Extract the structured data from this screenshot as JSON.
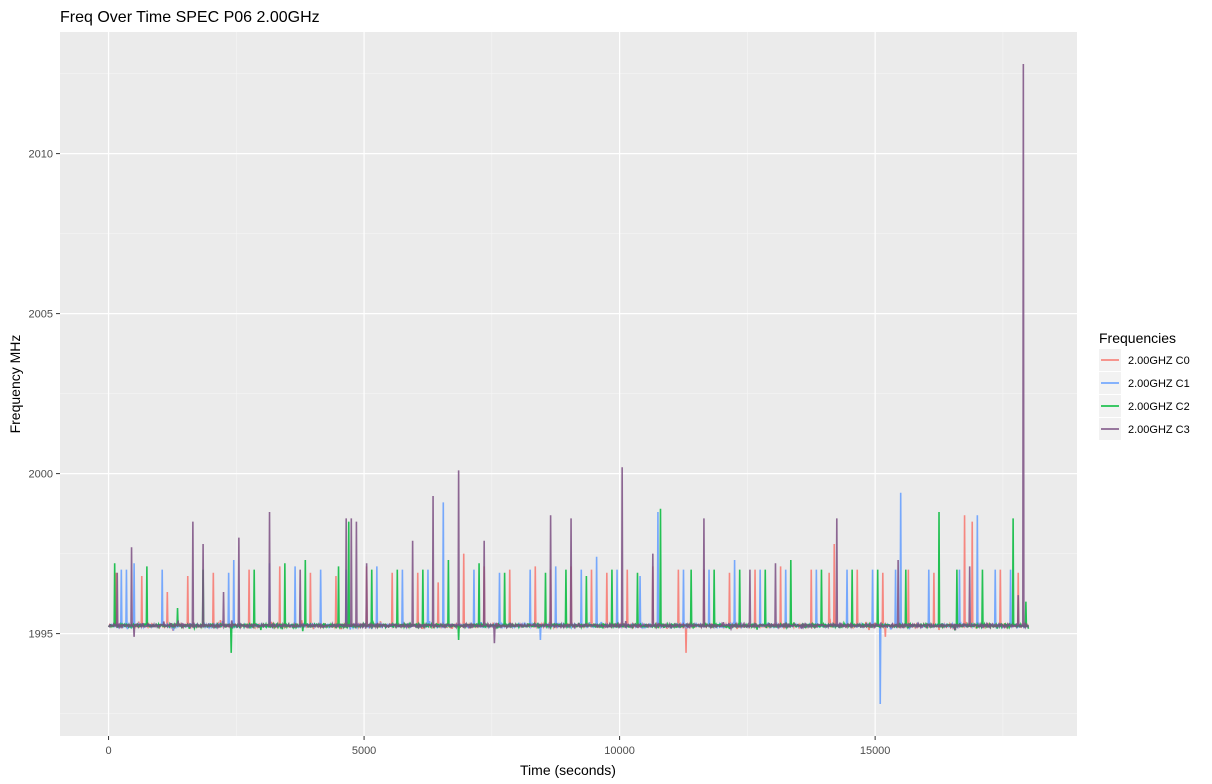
{
  "chart_data": {
    "type": "line",
    "title": "Freq Over Time SPEC P06 2.00GHz",
    "xlabel": "Time (seconds)",
    "ylabel": "Frequency MHz",
    "xlim": [
      -950,
      18950
    ],
    "ylim": [
      1991.8,
      2013.8
    ],
    "x_ticks": [
      0,
      5000,
      10000,
      15000
    ],
    "y_ticks": [
      1995,
      2000,
      2005,
      2010
    ],
    "x_tick_labels": [
      "0",
      "5000",
      "10000",
      "15000"
    ],
    "y_tick_labels": [
      "1995",
      "2000",
      "2005",
      "2010"
    ],
    "grid": true,
    "legend": {
      "title": "Frequencies",
      "placement": "right"
    },
    "baseline": 1995.25,
    "series": [
      {
        "name": "2.00GHZ C0",
        "color": "#F8766D",
        "spikes": [
          [
            150,
            1996.9
          ],
          [
            650,
            1996.8
          ],
          [
            1150,
            1996.3
          ],
          [
            1550,
            1996.8
          ],
          [
            2050,
            1996.9
          ],
          [
            2750,
            1997.0
          ],
          [
            3350,
            1997.1
          ],
          [
            3950,
            1996.9
          ],
          [
            4450,
            1996.8
          ],
          [
            5050,
            1997.1
          ],
          [
            5550,
            1996.9
          ],
          [
            6050,
            1996.9
          ],
          [
            6450,
            1996.6
          ],
          [
            6950,
            1997.5
          ],
          [
            7350,
            1997.1
          ],
          [
            7850,
            1997.0
          ],
          [
            8350,
            1997.1
          ],
          [
            8650,
            1997.0
          ],
          [
            9050,
            1997.1
          ],
          [
            9450,
            1997.0
          ],
          [
            9750,
            1996.9
          ],
          [
            10150,
            1997.0
          ],
          [
            10650,
            1997.1
          ],
          [
            11150,
            1997.0
          ],
          [
            11300,
            1994.4
          ],
          [
            11650,
            1997.0
          ],
          [
            12150,
            1996.9
          ],
          [
            12650,
            1997.0
          ],
          [
            13150,
            1997.1
          ],
          [
            13750,
            1997.0
          ],
          [
            14100,
            1996.9
          ],
          [
            14200,
            1997.8
          ],
          [
            14650,
            1997.0
          ],
          [
            15150,
            1996.9
          ],
          [
            15200,
            1994.9
          ],
          [
            15650,
            1997.0
          ],
          [
            16150,
            1996.9
          ],
          [
            16750,
            1998.7
          ],
          [
            16900,
            1998.5
          ],
          [
            17450,
            1997.0
          ],
          [
            17800,
            1996.9
          ]
        ]
      },
      {
        "name": "2.00GHZ C1",
        "color": "#619CFF",
        "spikes": [
          [
            250,
            1997.0
          ],
          [
            350,
            1997.0
          ],
          [
            500,
            1997.2
          ],
          [
            1050,
            1997.0
          ],
          [
            2350,
            1996.9
          ],
          [
            2450,
            1997.3
          ],
          [
            3150,
            1997.2
          ],
          [
            3650,
            1997.1
          ],
          [
            4150,
            1997.0
          ],
          [
            4650,
            1997.0
          ],
          [
            5250,
            1997.1
          ],
          [
            5750,
            1997.0
          ],
          [
            6250,
            1997.0
          ],
          [
            6550,
            1999.1
          ],
          [
            7150,
            1997.0
          ],
          [
            7650,
            1996.9
          ],
          [
            8250,
            1997.0
          ],
          [
            8450,
            1994.8
          ],
          [
            8750,
            1997.1
          ],
          [
            9250,
            1997.0
          ],
          [
            9550,
            1997.4
          ],
          [
            9950,
            1997.0
          ],
          [
            10400,
            1996.8
          ],
          [
            10750,
            1998.8
          ],
          [
            11250,
            1997.0
          ],
          [
            11750,
            1997.0
          ],
          [
            12250,
            1997.3
          ],
          [
            12750,
            1997.0
          ],
          [
            13250,
            1997.0
          ],
          [
            13850,
            1997.0
          ],
          [
            14450,
            1997.0
          ],
          [
            14950,
            1997.0
          ],
          [
            15100,
            1992.8
          ],
          [
            15400,
            1997.0
          ],
          [
            15500,
            1999.4
          ],
          [
            16050,
            1997.0
          ],
          [
            16650,
            1997.0
          ],
          [
            17000,
            1998.7
          ],
          [
            17350,
            1997.0
          ],
          [
            17650,
            1997.0
          ]
        ]
      },
      {
        "name": "2.00GHZ C2",
        "color": "#00BA38",
        "spikes": [
          [
            120,
            1997.2
          ],
          [
            750,
            1997.1
          ],
          [
            1350,
            1995.8
          ],
          [
            1850,
            1997.0
          ],
          [
            2400,
            1994.4
          ],
          [
            2850,
            1997.0
          ],
          [
            3450,
            1997.2
          ],
          [
            3850,
            1997.3
          ],
          [
            4500,
            1997.1
          ],
          [
            4700,
            1998.5
          ],
          [
            5150,
            1997.0
          ],
          [
            5650,
            1997.0
          ],
          [
            6150,
            1997.0
          ],
          [
            6650,
            1997.3
          ],
          [
            6850,
            1994.8
          ],
          [
            7250,
            1997.2
          ],
          [
            7750,
            1996.9
          ],
          [
            8550,
            1996.9
          ],
          [
            8950,
            1997.0
          ],
          [
            9350,
            1996.8
          ],
          [
            9850,
            1997.0
          ],
          [
            10350,
            1996.9
          ],
          [
            10800,
            1998.9
          ],
          [
            11400,
            1997.0
          ],
          [
            11850,
            1997.0
          ],
          [
            12350,
            1997.0
          ],
          [
            12850,
            1997.0
          ],
          [
            13350,
            1997.3
          ],
          [
            13950,
            1997.0
          ],
          [
            14550,
            1997.0
          ],
          [
            15050,
            1997.0
          ],
          [
            15600,
            1997.0
          ],
          [
            16250,
            1998.8
          ],
          [
            16600,
            1997.0
          ],
          [
            17100,
            1997.0
          ],
          [
            17700,
            1998.6
          ],
          [
            17950,
            1996.0
          ]
        ]
      },
      {
        "name": "2.00GHZ C3",
        "color": "#7B4F82",
        "spikes": [
          [
            170,
            1996.9
          ],
          [
            450,
            1997.7
          ],
          [
            500,
            1994.9
          ],
          [
            1650,
            1998.5
          ],
          [
            1850,
            1997.8
          ],
          [
            2250,
            1996.3
          ],
          [
            2550,
            1998.0
          ],
          [
            3150,
            1998.8
          ],
          [
            3750,
            1997.0
          ],
          [
            4650,
            1998.6
          ],
          [
            4750,
            1998.6
          ],
          [
            4850,
            1998.5
          ],
          [
            5050,
            1997.2
          ],
          [
            5950,
            1997.9
          ],
          [
            6350,
            1999.3
          ],
          [
            6850,
            2000.1
          ],
          [
            7350,
            1997.9
          ],
          [
            7550,
            1994.7
          ],
          [
            8650,
            1998.7
          ],
          [
            9050,
            1998.6
          ],
          [
            10050,
            2000.2
          ],
          [
            10650,
            1997.5
          ],
          [
            11650,
            1998.6
          ],
          [
            12550,
            1997.0
          ],
          [
            13050,
            1997.2
          ],
          [
            14250,
            1998.6
          ],
          [
            15450,
            1997.3
          ],
          [
            16850,
            1997.1
          ],
          [
            17800,
            1996.2
          ],
          [
            17900,
            2012.8
          ]
        ]
      }
    ]
  }
}
